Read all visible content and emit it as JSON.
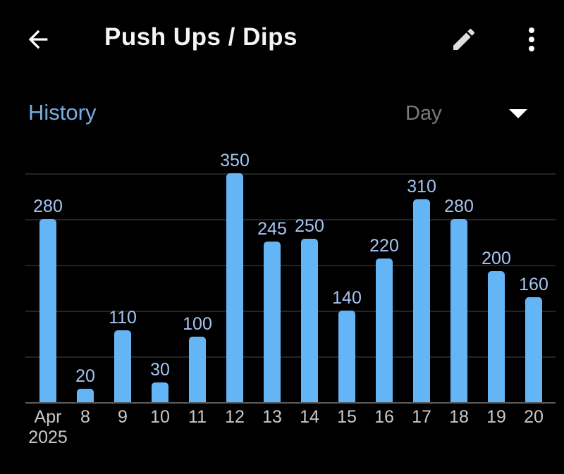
{
  "header": {
    "title": "Push Ups / Dips",
    "back_icon": "arrow-left",
    "edit_icon": "pencil",
    "menu_icon": "kebab-menu"
  },
  "toolbar": {
    "section_label": "History",
    "period_dropdown": {
      "value": "Day"
    }
  },
  "chart_data": {
    "type": "bar",
    "categories": [
      "Apr 2025",
      "8",
      "9",
      "10",
      "11",
      "12",
      "13",
      "14",
      "15",
      "16",
      "17",
      "18",
      "19",
      "20"
    ],
    "values": [
      280,
      20,
      110,
      30,
      100,
      350,
      245,
      250,
      140,
      220,
      310,
      280,
      200,
      160
    ],
    "value_labels": [
      "280",
      "20",
      "110",
      "30",
      "100",
      "350",
      "245",
      "250",
      "140",
      "220",
      "310",
      "280",
      "200",
      "160"
    ],
    "title": "",
    "xlabel": "",
    "ylabel": "",
    "ylim": [
      0,
      378
    ],
    "gridline_values": [
      70,
      140,
      210,
      280,
      350
    ],
    "grid": true,
    "legend": "none"
  },
  "colors": {
    "background": "#000000",
    "bar": "#64b5f6",
    "value_label": "#a6c4f0",
    "axis_label": "#c8c8c8",
    "accent_blue": "#78ace3",
    "muted_gray": "#7a7a7a",
    "gridline": "#242424",
    "axis_line": "#5c5c5c",
    "title_white": "#f5f5f5"
  }
}
